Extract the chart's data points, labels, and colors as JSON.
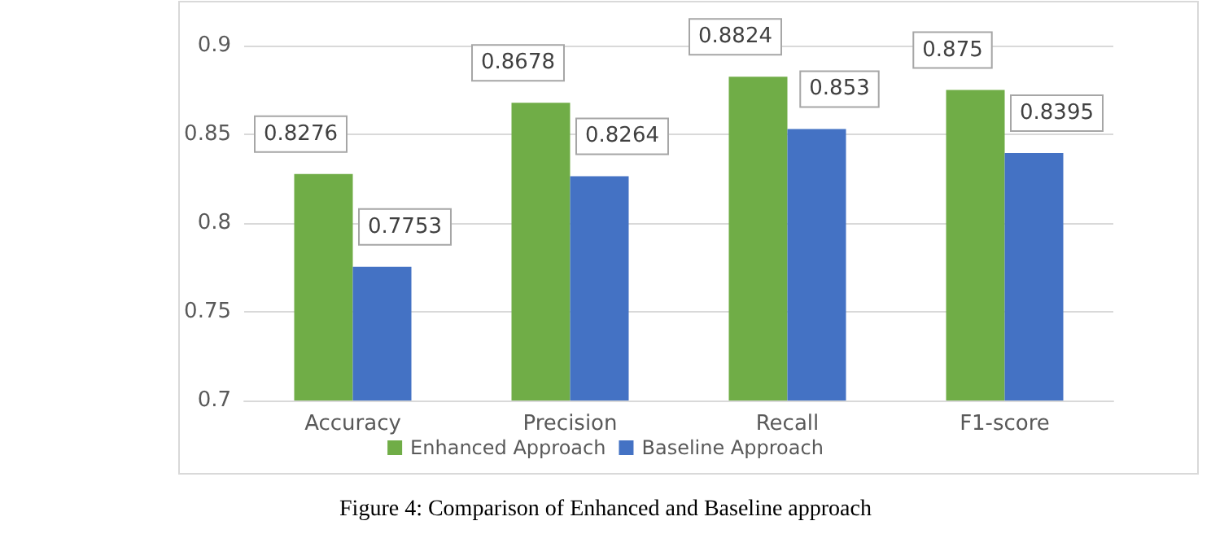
{
  "chart_data": {
    "type": "bar",
    "categories": [
      "Accuracy",
      "Precision",
      "Recall",
      "F1-score"
    ],
    "series": [
      {
        "name": "Enhanced Approach",
        "color": "#70ad47",
        "values": [
          0.8276,
          0.8678,
          0.8824,
          0.875
        ]
      },
      {
        "name": "Baseline Approach",
        "color": "#4472c4",
        "values": [
          0.7753,
          0.8264,
          0.853,
          0.8395
        ]
      }
    ],
    "ylim": [
      0.7,
      0.9
    ],
    "yticks": [
      0.7,
      0.75,
      0.8,
      0.85,
      0.9
    ],
    "grid": "y",
    "legend": "bottom",
    "data_labels": true,
    "annotations": [
      "Figure 4: Comparison of Enhanced and Baseline approach"
    ]
  }
}
